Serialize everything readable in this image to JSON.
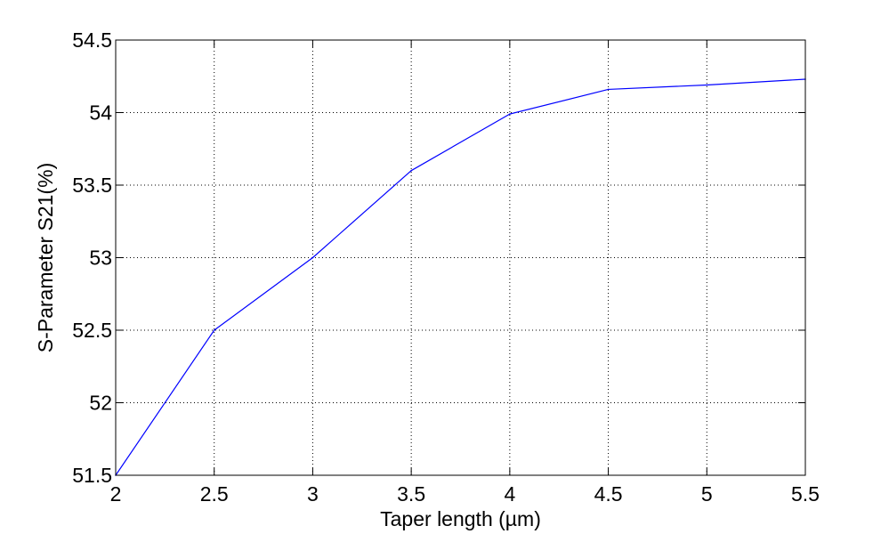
{
  "colors": {
    "background": "#ffffff",
    "axes": "#000000",
    "grid": "#000000",
    "series": "#0000ff"
  },
  "chart_data": {
    "type": "line",
    "title": "",
    "xlabel": "Taper length (µm)",
    "ylabel": "S-Parameter S21(%)",
    "xlim": [
      2,
      5.5
    ],
    "ylim": [
      51.5,
      54.5
    ],
    "xticks": [
      2,
      2.5,
      3,
      3.5,
      4,
      4.5,
      5,
      5.5
    ],
    "yticks": [
      51.5,
      52,
      52.5,
      53,
      53.5,
      54,
      54.5
    ],
    "xtick_labels": [
      "2",
      "2.5",
      "3",
      "3.5",
      "4",
      "4.5",
      "5",
      "5.5"
    ],
    "ytick_labels": [
      "51.5",
      "52",
      "52.5",
      "53",
      "53.5",
      "54",
      "54.5"
    ],
    "grid": true,
    "grid_style": "dotted",
    "box": true,
    "legend": null,
    "series": [
      {
        "color": "#0000ff",
        "x": [
          2,
          2.5,
          3,
          3.5,
          4,
          4.5,
          5,
          5.5
        ],
        "y": [
          51.5,
          52.5,
          53.0,
          53.6,
          53.99,
          54.16,
          54.19,
          54.23
        ]
      }
    ]
  }
}
